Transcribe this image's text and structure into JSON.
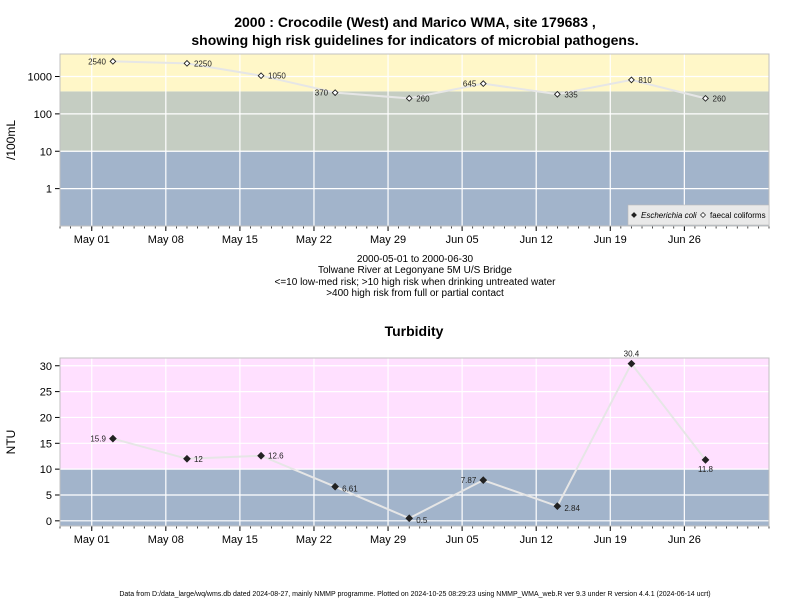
{
  "chart_data": [
    {
      "type": "line",
      "title_line1": "2000 : Crocodile (West) and Marico WMA, site 179683 ,",
      "title_line2": "showing high risk guidelines for indicators of microbial pathogens.",
      "ylabel": "/100mL",
      "y_scale": "log",
      "ylim": [
        0.1,
        4000
      ],
      "y_ticks": [
        "1",
        "10",
        "100",
        "1000"
      ],
      "x_ticks": [
        "May 01",
        "May 08",
        "May 15",
        "May 22",
        "May 29",
        "Jun 05",
        "Jun 12",
        "Jun 19",
        "Jun 26"
      ],
      "xlim": [
        "2000-04-28",
        "2000-07-04"
      ],
      "bands": [
        {
          "from": 0.1,
          "to": 10,
          "color": "#a2b4cb",
          "meaning": "low-med risk"
        },
        {
          "from": 10,
          "to": 400,
          "color": "#c5cdc2",
          "meaning": "high risk when drinking untreated water"
        },
        {
          "from": 400,
          "to": 4000,
          "color": "#fff7c8",
          "meaning": "high risk from full or partial contact"
        }
      ],
      "series": [
        {
          "name": "Escherichia coli",
          "marker": "filled-diamond",
          "points": []
        },
        {
          "name": "faecal coliforms",
          "marker": "open-diamond",
          "points": [
            {
              "x": "2000-05-03",
              "y": 2540,
              "label": "2540"
            },
            {
              "x": "2000-05-10",
              "y": 2250,
              "label": "2250"
            },
            {
              "x": "2000-05-17",
              "y": 1050,
              "label": "1050"
            },
            {
              "x": "2000-05-24",
              "y": 370,
              "label": "370"
            },
            {
              "x": "2000-05-31",
              "y": 260,
              "label": "260"
            },
            {
              "x": "2000-06-07",
              "y": 645,
              "label": "645"
            },
            {
              "x": "2000-06-14",
              "y": 335,
              "label": "335"
            },
            {
              "x": "2000-06-21",
              "y": 810,
              "label": "810"
            },
            {
              "x": "2000-06-28",
              "y": 260,
              "label": "260"
            }
          ]
        }
      ],
      "legend_position": "bottom-right",
      "grid": true
    },
    {
      "type": "line",
      "title": "Turbidity",
      "ylabel": "NTU",
      "ylim": [
        -1,
        31.5
      ],
      "y_ticks": [
        "0",
        "5",
        "10",
        "15",
        "20",
        "25",
        "30"
      ],
      "x_ticks": [
        "May 01",
        "May 08",
        "May 15",
        "May 22",
        "May 29",
        "Jun 05",
        "Jun 12",
        "Jun 19",
        "Jun 26"
      ],
      "xlim": [
        "2000-04-28",
        "2000-07-04"
      ],
      "bands": [
        {
          "from": -1,
          "to": 10,
          "color": "#a2b4cb"
        },
        {
          "from": 10,
          "to": 31.5,
          "color": "#ffe0ff"
        }
      ],
      "series": [
        {
          "name": "",
          "marker": "filled-diamond",
          "points": [
            {
              "x": "2000-05-03",
              "y": 15.9,
              "label": "15.9"
            },
            {
              "x": "2000-05-10",
              "y": 12,
              "label": "12"
            },
            {
              "x": "2000-05-17",
              "y": 12.6,
              "label": "12.6"
            },
            {
              "x": "2000-05-24",
              "y": 6.61,
              "label": "6.61"
            },
            {
              "x": "2000-05-31",
              "y": 0.5,
              "label": "0.5"
            },
            {
              "x": "2000-06-07",
              "y": 7.87,
              "label": "7.87"
            },
            {
              "x": "2000-06-14",
              "y": 2.84,
              "label": "2.84"
            },
            {
              "x": "2000-06-21",
              "y": 30.4,
              "label": "30.4"
            },
            {
              "x": "2000-06-28",
              "y": 11.8,
              "label": "11.8"
            }
          ]
        }
      ],
      "grid": true
    }
  ],
  "captions": {
    "date_range": "2000-05-01 to 2000-06-30",
    "site": "Tolwane River at Legonyane 5M U/S Bridge",
    "guideline1": "<=10 low-med risk; >10 high risk when drinking untreated water",
    "guideline2": ">400 high risk from full or partial contact"
  },
  "footer": "Data from D:/data_large/wq/wms.db dated 2024-08-27, mainly NMMP programme. Plotted on 2024-10-25 08:29:23 using NMMP_WMA_web.R ver 9.3 under R version 4.4.1 (2024-06-14 ucrt)"
}
